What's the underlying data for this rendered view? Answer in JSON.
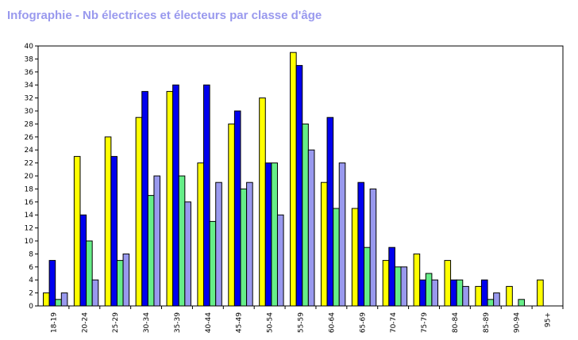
{
  "chart_data": {
    "type": "bar",
    "title": "Infographie - Nb électrices et électeurs par classe d'âge",
    "xlabel": "",
    "ylabel": "",
    "ylim": [
      0,
      40
    ],
    "yticks": [
      0,
      2,
      4,
      6,
      8,
      10,
      12,
      14,
      16,
      18,
      20,
      22,
      24,
      26,
      28,
      30,
      32,
      34,
      36,
      38,
      40
    ],
    "grid": false,
    "legend": "none",
    "categories": [
      "18-19",
      "20-24",
      "25-29",
      "30-34",
      "35-39",
      "40-44",
      "45-49",
      "50-54",
      "55-59",
      "60-64",
      "65-69",
      "70-74",
      "75-79",
      "80-84",
      "85-89",
      "90-94",
      "95+"
    ],
    "series": [
      {
        "color": "#ffff00",
        "values": [
          2,
          23,
          26,
          29,
          33,
          22,
          28,
          32,
          39,
          19,
          15,
          7,
          8,
          7,
          3,
          3,
          4
        ]
      },
      {
        "color": "#0000ee",
        "values": [
          7,
          14,
          23,
          33,
          34,
          34,
          30,
          22,
          37,
          29,
          19,
          9,
          4,
          4,
          4,
          0,
          0
        ]
      },
      {
        "color": "#66ee88",
        "values": [
          1,
          10,
          7,
          17,
          20,
          13,
          18,
          22,
          28,
          15,
          9,
          6,
          5,
          4,
          1,
          1,
          0
        ]
      },
      {
        "color": "#9999ee",
        "values": [
          2,
          4,
          8,
          20,
          16,
          19,
          19,
          14,
          24,
          22,
          18,
          6,
          4,
          3,
          2,
          0,
          0
        ]
      }
    ]
  }
}
